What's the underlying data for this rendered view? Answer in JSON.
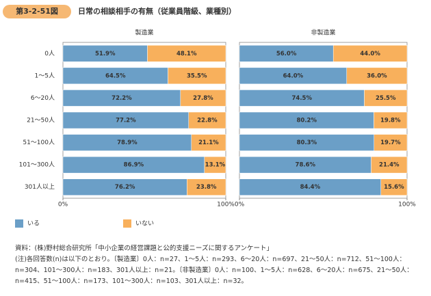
{
  "figure_label": "第3-2-51図",
  "title": "日常の相談相手の有無（従業員階級、業種別）",
  "chart_data": [
    {
      "type": "stacked_bar",
      "title": "製造業",
      "categories": [
        "0人",
        "1～5人",
        "6～20人",
        "21～50人",
        "51～100人",
        "101～300人",
        "301人以上"
      ],
      "series": [
        {
          "name": "いる",
          "color": "#6b9fc7",
          "values": [
            51.9,
            64.5,
            72.2,
            77.2,
            78.9,
            86.9,
            76.2
          ],
          "value_labels": [
            "51.9%",
            "64.5%",
            "72.2%",
            "77.2%",
            "78.9%",
            "86.9%",
            "76.2%"
          ]
        },
        {
          "name": "いない",
          "color": "#f8b05c",
          "values": [
            48.1,
            35.5,
            27.8,
            22.8,
            21.1,
            13.1,
            23.8
          ],
          "value_labels": [
            "48.1%",
            "35.5%",
            "27.8%",
            "22.8%",
            "21.1%",
            "13.1%",
            "23.8%"
          ]
        }
      ],
      "xlim": [
        0,
        100
      ],
      "xticks": [
        {
          "value": 0,
          "label": "0%"
        },
        {
          "value": 100,
          "label": "100%"
        }
      ]
    },
    {
      "type": "stacked_bar",
      "title": "非製造業",
      "series": [
        {
          "color": "#6b9fc7",
          "values": [
            56.0,
            64.0,
            74.5,
            80.2,
            80.3,
            78.6,
            84.4
          ],
          "value_labels": [
            "56.0%",
            "64.0%",
            "74.5%",
            "80.2%",
            "80.3%",
            "78.6%",
            "84.4%"
          ]
        },
        {
          "color": "#f8b05c",
          "values": [
            44.0,
            36.0,
            25.5,
            19.8,
            19.7,
            21.4,
            15.6
          ],
          "value_labels": [
            "44.0%",
            "36.0%",
            "25.5%",
            "19.8%",
            "19.7%",
            "21.4%",
            "15.6%"
          ]
        }
      ],
      "xlim": [
        0,
        100
      ],
      "xticks": [
        {
          "value": 0,
          "label": "0%"
        },
        {
          "value": 100,
          "label": "100%"
        }
      ]
    }
  ],
  "notes": [
    "資料：(株)野村総合研究所「中小企業の経営課題と公的支援ニーズに関するアンケート」",
    "(注)各回答数(n)は以下のとおり。〔製造業〕0人：n=27、1～5人：n=293、6～20人：n=697、21～50人：n=712、51～100人：n=304、101～300人：n=183、301人以上：n=21。〔非製造業〕0人：n=100、1～5人：n=628、6～20人：n=675、21～50人：n=415、51～100人：n=173、101～300人：n=103、301人以上：n=32。"
  ]
}
